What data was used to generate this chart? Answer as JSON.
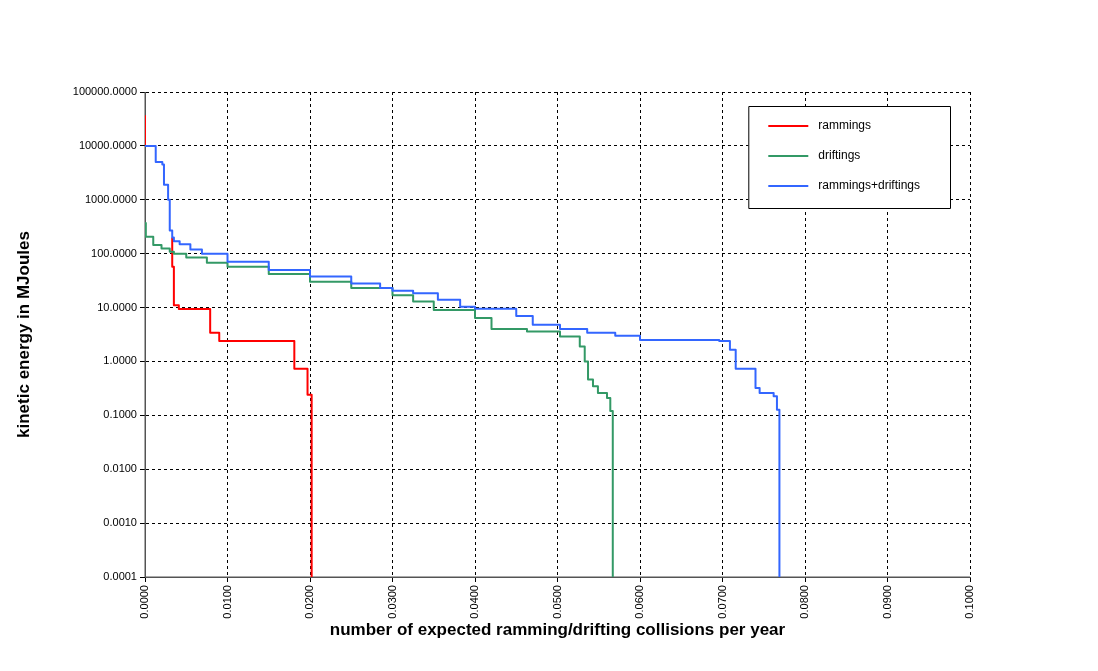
{
  "chart_data": {
    "type": "step",
    "xlabel": "number of expected ramming/drifting collisions per year",
    "ylabel": "kinetic energy in MJoules",
    "log": "y",
    "grid": true,
    "legend": "top right",
    "marker": "none",
    "line_style": "solid",
    "xlim": [
      0,
      0.1
    ],
    "xticks": [
      {
        "value": 0,
        "label": "0.0000"
      },
      {
        "value": 0.01,
        "label": "0.0100"
      },
      {
        "value": 0.02,
        "label": "0.0200"
      },
      {
        "value": 0.03,
        "label": "0.0300"
      },
      {
        "value": 0.04,
        "label": "0.0400"
      },
      {
        "value": 0.05,
        "label": "0.0500"
      },
      {
        "value": 0.06,
        "label": "0.0600"
      },
      {
        "value": 0.07,
        "label": "0.0700"
      },
      {
        "value": 0.08,
        "label": "0.0800"
      },
      {
        "value": 0.09,
        "label": "0.0900"
      },
      {
        "value": 0.1,
        "label": "0.1000"
      }
    ],
    "ylim": [
      0.0001,
      100000
    ],
    "yticks": [
      {
        "value": 0.0001,
        "label": "0.0001"
      },
      {
        "value": 0.001,
        "label": "0.0010"
      },
      {
        "value": 0.01,
        "label": "0.0100"
      },
      {
        "value": 0.1,
        "label": "0.1000"
      },
      {
        "value": 1,
        "label": "1.0000"
      },
      {
        "value": 10,
        "label": "10.0000"
      },
      {
        "value": 100,
        "label": "100.0000"
      },
      {
        "value": 1000,
        "label": "1000.0000"
      },
      {
        "value": 10000,
        "label": "10000.0000"
      },
      {
        "value": 100000,
        "label": "100000.0000"
      }
    ],
    "series": [
      {
        "name": "rammings",
        "color": "#ff0000",
        "x": [
          0,
          0,
          0.0013,
          0.0021,
          0.0023,
          0.0028,
          0.003,
          0.0033,
          0.0033,
          0.0035,
          0.0041,
          0.0079,
          0.009,
          0.0181,
          0.0197,
          0.0202
        ],
        "values": [
          37000,
          10000,
          null,
          null,
          null,
          null,
          null,
          200,
          57,
          11,
          9.4,
          3.4,
          2.4,
          0.73,
          0.24,
          0.0001
        ]
      },
      {
        "name": "driftings",
        "color": "#339966",
        "x": [
          0,
          0.0001,
          0.001,
          0.002,
          0.003,
          0.0035,
          0.005,
          0.0075,
          0.01,
          0.015,
          0.02,
          0.025,
          0.03,
          0.0325,
          0.035,
          0.04,
          0.042,
          0.0463,
          0.0503,
          0.0527,
          0.0533,
          0.0537,
          0.0543,
          0.0549,
          0.056,
          0.0564,
          0.0567,
          0.0567
        ],
        "values": [
          370,
          205,
          145,
          125,
          109,
          100,
          85,
          68,
          57,
          42,
          30,
          23,
          17,
          13,
          9,
          6.4,
          4,
          3.6,
          2.9,
          1.9,
          1,
          0.46,
          0.345,
          0.26,
          0.21,
          0.12,
          0.067,
          0.0001
        ]
      },
      {
        "name": "rammings+driftings",
        "color": "#3366ff",
        "x": [
          0,
          0.0013,
          0.0021,
          0.0023,
          0.0028,
          0.003,
          0.0033,
          0.0035,
          0.0042,
          0.0055,
          0.0069,
          0.01,
          0.015,
          0.02,
          0.025,
          0.0285,
          0.03,
          0.0325,
          0.0355,
          0.0382,
          0.04,
          0.045,
          0.047,
          0.0503,
          0.0536,
          0.057,
          0.06,
          0.0696,
          0.0709,
          0.0716,
          0.074,
          0.0745,
          0.0762,
          0.0766,
          0.0769,
          0.0769
        ],
        "values": [
          10000,
          5000,
          4500,
          1900,
          1000,
          270,
          200,
          170,
          150,
          120,
          100,
          71,
          50,
          37.5,
          28,
          23,
          20.6,
          18.5,
          14,
          10.4,
          9.5,
          7,
          4.8,
          4,
          3.4,
          3,
          2.5,
          2.4,
          1.65,
          0.73,
          0.32,
          0.26,
          0.225,
          0.127,
          0.074,
          0.0001
        ]
      }
    ]
  }
}
